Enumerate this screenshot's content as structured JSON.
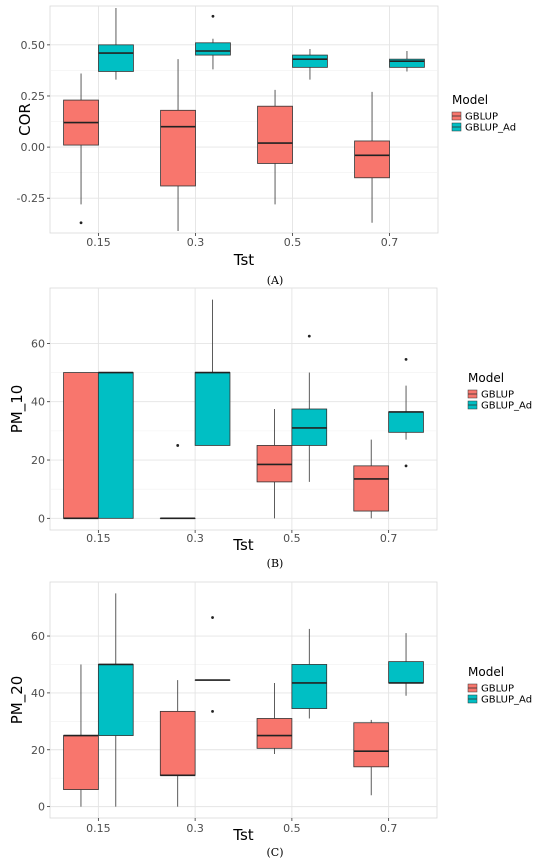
{
  "chart_data": [
    {
      "type": "box",
      "panel_label": "(A)",
      "xlabel": "Tst",
      "ylabel": "COR",
      "categories": [
        "0.15",
        "0.3",
        "0.5",
        "0.7"
      ],
      "ylim": [
        -0.42,
        0.69
      ],
      "yticks": [
        -0.25,
        0.0,
        0.25,
        0.5
      ],
      "ytick_labels": [
        "-0.25",
        "0.00",
        "0.25",
        "0.50"
      ],
      "legend": {
        "title": "Model",
        "position": "right",
        "entries": [
          "GBLUP",
          "GBLUP_Ad"
        ]
      },
      "grid": true,
      "series": [
        {
          "name": "GBLUP",
          "color": "#F8766D",
          "boxes": [
            {
              "category": "0.15",
              "whisker_low": -0.28,
              "q1": 0.01,
              "median": 0.12,
              "q3": 0.23,
              "whisker_high": 0.36,
              "outliers": [
                -0.37
              ]
            },
            {
              "category": "0.3",
              "whisker_low": -0.41,
              "q1": -0.19,
              "median": 0.1,
              "q3": 0.18,
              "whisker_high": 0.43,
              "outliers": []
            },
            {
              "category": "0.5",
              "whisker_low": -0.28,
              "q1": -0.08,
              "median": 0.02,
              "q3": 0.2,
              "whisker_high": 0.28,
              "outliers": []
            },
            {
              "category": "0.7",
              "whisker_low": -0.37,
              "q1": -0.15,
              "median": -0.04,
              "q3": 0.03,
              "whisker_high": 0.27,
              "outliers": []
            }
          ]
        },
        {
          "name": "GBLUP_Ad",
          "color": "#00BFC4",
          "boxes": [
            {
              "category": "0.15",
              "whisker_low": 0.33,
              "q1": 0.37,
              "median": 0.46,
              "q3": 0.5,
              "whisker_high": 0.68,
              "outliers": []
            },
            {
              "category": "0.3",
              "whisker_low": 0.38,
              "q1": 0.45,
              "median": 0.47,
              "q3": 0.51,
              "whisker_high": 0.53,
              "outliers": [
                0.64
              ]
            },
            {
              "category": "0.5",
              "whisker_low": 0.33,
              "q1": 0.39,
              "median": 0.43,
              "q3": 0.45,
              "whisker_high": 0.48,
              "outliers": []
            },
            {
              "category": "0.7",
              "whisker_low": 0.37,
              "q1": 0.39,
              "median": 0.42,
              "q3": 0.43,
              "whisker_high": 0.47,
              "outliers": []
            }
          ]
        }
      ]
    },
    {
      "type": "box",
      "panel_label": "(B)",
      "xlabel": "Tst",
      "ylabel": "PM_10",
      "categories": [
        "0.15",
        "0.3",
        "0.5",
        "0.7"
      ],
      "ylim": [
        -4,
        79
      ],
      "yticks": [
        0,
        20,
        40,
        60
      ],
      "ytick_labels": [
        "0",
        "20",
        "40",
        "60"
      ],
      "legend": {
        "title": "Model",
        "position": "right",
        "entries": [
          "GBLUP",
          "GBLUP_Ad"
        ]
      },
      "grid": true,
      "series": [
        {
          "name": "GBLUP",
          "color": "#F8766D",
          "boxes": [
            {
              "category": "0.15",
              "whisker_low": 0,
              "q1": 0,
              "median": 0,
              "q3": 50,
              "whisker_high": 50,
              "outliers": []
            },
            {
              "category": "0.3",
              "whisker_low": 0,
              "q1": 0,
              "median": 0,
              "q3": 0,
              "whisker_high": 0,
              "outliers": [
                25
              ]
            },
            {
              "category": "0.5",
              "whisker_low": 0,
              "q1": 12.5,
              "median": 18.5,
              "q3": 25,
              "whisker_high": 37.5,
              "outliers": []
            },
            {
              "category": "0.7",
              "whisker_low": 0,
              "q1": 2.5,
              "median": 13.5,
              "q3": 18,
              "whisker_high": 27,
              "outliers": []
            }
          ]
        },
        {
          "name": "GBLUP_Ad",
          "color": "#00BFC4",
          "boxes": [
            {
              "category": "0.15",
              "whisker_low": 0,
              "q1": 0,
              "median": 50,
              "q3": 50,
              "whisker_high": 50,
              "outliers": []
            },
            {
              "category": "0.3",
              "whisker_low": 25,
              "q1": 25,
              "median": 50,
              "q3": 50,
              "whisker_high": 75,
              "outliers": []
            },
            {
              "category": "0.5",
              "whisker_low": 12.5,
              "q1": 25,
              "median": 31,
              "q3": 37.5,
              "whisker_high": 50,
              "outliers": [
                62.5
              ]
            },
            {
              "category": "0.7",
              "whisker_low": 27,
              "q1": 29.5,
              "median": 36.5,
              "q3": 36.5,
              "whisker_high": 45.5,
              "outliers": [
                54.5,
                18
              ]
            }
          ]
        }
      ]
    },
    {
      "type": "box",
      "panel_label": "(C)",
      "xlabel": "Tst",
      "ylabel": "PM_20",
      "categories": [
        "0.15",
        "0.3",
        "0.5",
        "0.7"
      ],
      "ylim": [
        -4,
        79
      ],
      "yticks": [
        0,
        20,
        40,
        60
      ],
      "ytick_labels": [
        "0",
        "20",
        "40",
        "60"
      ],
      "legend": {
        "title": "Model",
        "position": "right",
        "entries": [
          "GBLUP",
          "GBLUP_Ad"
        ]
      },
      "grid": true,
      "series": [
        {
          "name": "GBLUP",
          "color": "#F8766D",
          "boxes": [
            {
              "category": "0.15",
              "whisker_low": 0,
              "q1": 6,
              "median": 25,
              "q3": 25,
              "whisker_high": 50,
              "outliers": []
            },
            {
              "category": "0.3",
              "whisker_low": 0,
              "q1": 11,
              "median": 11,
              "q3": 33.5,
              "whisker_high": 44.5,
              "outliers": []
            },
            {
              "category": "0.5",
              "whisker_low": 18.5,
              "q1": 20.5,
              "median": 25,
              "q3": 31,
              "whisker_high": 43.5,
              "outliers": []
            },
            {
              "category": "0.7",
              "whisker_low": 4,
              "q1": 14,
              "median": 19.5,
              "q3": 29.5,
              "whisker_high": 30.5,
              "outliers": []
            }
          ]
        },
        {
          "name": "GBLUP_Ad",
          "color": "#00BFC4",
          "boxes": [
            {
              "category": "0.15",
              "whisker_low": 0,
              "q1": 25,
              "median": 50,
              "q3": 50,
              "whisker_high": 75,
              "outliers": []
            },
            {
              "category": "0.3",
              "whisker_low": 44.5,
              "q1": 44.5,
              "median": 44.5,
              "q3": 44.5,
              "whisker_high": 44.5,
              "outliers": [
                66.5,
                33.5
              ]
            },
            {
              "category": "0.5",
              "whisker_low": 31,
              "q1": 34.5,
              "median": 43.5,
              "q3": 50,
              "whisker_high": 62.5,
              "outliers": []
            },
            {
              "category": "0.7",
              "whisker_low": 39,
              "q1": 43.5,
              "median": 43.5,
              "q3": 51,
              "whisker_high": 61,
              "outliers": []
            }
          ]
        }
      ]
    }
  ]
}
